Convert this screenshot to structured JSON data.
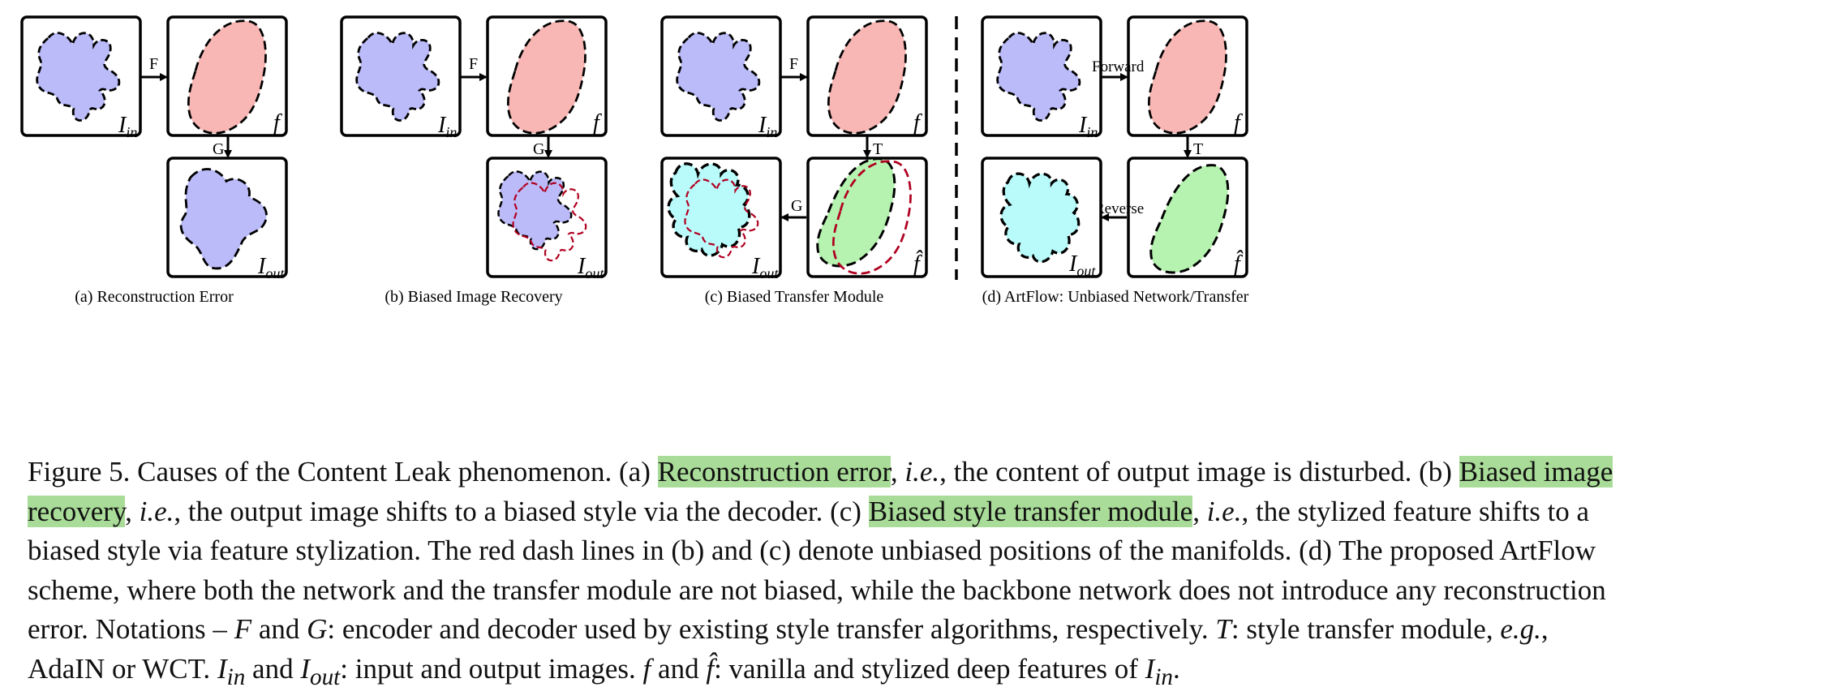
{
  "figure": {
    "input_label": "I",
    "input_sub": "in",
    "feature_label": "f",
    "output_label": "I",
    "output_sub": "out",
    "stylized_feature_label": "f̂",
    "arrow_f": "F",
    "arrow_g": "G",
    "arrow_t": "T",
    "arrow_forward": "Forward",
    "arrow_reverse": "Reverse",
    "panels": [
      {
        "caption": "(a) Reconstruction Error"
      },
      {
        "caption": "(b) Biased Image Recovery"
      },
      {
        "caption": "(c) Biased Transfer Module"
      },
      {
        "caption": "(d) ArtFlow: Unbiased Network/Transfer"
      }
    ],
    "colors": {
      "purple_blob": "#bbbbf9",
      "pink_blob": "#f8b7b4",
      "green_blob": "#b6f3b0",
      "cyan_blob": "#b9fbfb",
      "red_dash": "#b00020",
      "highlight": "#a9dc98"
    }
  },
  "caption": {
    "l1a": "Figure 5. Causes of the Content Leak phenomenon. (a) ",
    "l1b": "Reconstruction error",
    "l1c": ", ",
    "l1d": "i.e.",
    "l1e": ", the content of output image is disturbed. (b) ",
    "l1f": "Biased image",
    "l2a": "recovery",
    "l2b": ", ",
    "l2c": "i.e.",
    "l2d": ", the output image shifts to a biased style via the decoder. (c) ",
    "l2e": "Biased style transfer module",
    "l2f": ", ",
    "l2g": "i.e.",
    "l2h": ", the stylized feature shifts to a",
    "l3": "biased style via feature stylization. The red dash lines in (b) and (c) denote unbiased positions of the manifolds. (d) The proposed ArtFlow",
    "l4": "scheme, where both the network and the transfer module are not biased, while the backbone network does not introduce any reconstruction",
    "l5a": "error. Notations – ",
    "l5b": "F",
    "l5c": " and ",
    "l5d": "G",
    "l5e": ": encoder and decoder used by existing style transfer algorithms, respectively. ",
    "l5f": "T",
    "l5g": ": style transfer module, ",
    "l5h": "e.g.",
    "l5i": ",",
    "l6a": "AdaIN or WCT. ",
    "l6b": "I",
    "l6c": "in",
    "l6d": " and ",
    "l6e": "I",
    "l6f": "out",
    "l6g": ": input and output images. ",
    "l6h": "f",
    "l6i": " and ",
    "l6j": "f̂",
    "l6k": ": vanilla and stylized deep features of ",
    "l6l": "I",
    "l6m": "in",
    "l6n": "."
  }
}
